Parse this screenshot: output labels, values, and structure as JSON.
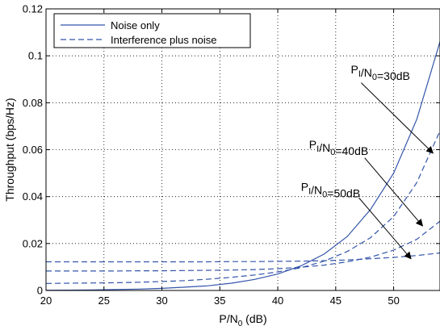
{
  "chart_data": {
    "type": "line",
    "xlabel": "P/N0 (dB)",
    "ylabel": "Throughput (bps/Hz)",
    "xlim": [
      20,
      54
    ],
    "ylim": [
      0,
      0.12
    ],
    "x_ticks": [
      20,
      25,
      30,
      35,
      40,
      45,
      50
    ],
    "y_ticks": [
      0,
      0.02,
      0.04,
      0.06,
      0.08,
      0.1,
      0.12
    ],
    "x_tick_labels": [
      "20",
      "25",
      "30",
      "35",
      "40",
      "45",
      "50"
    ],
    "y_tick_labels": [
      "0",
      "0.02",
      "0.04",
      "0.06",
      "0.08",
      "0.1",
      "0.12"
    ],
    "grid": true,
    "legend_position": "top-left",
    "legend": [
      {
        "label": "Noise only",
        "style": "solid"
      },
      {
        "label": "Interference plus noise",
        "style": "dashed"
      }
    ],
    "line_color": "#3355aa",
    "series": [
      {
        "name": "Noise only",
        "style": "solid",
        "x": [
          20,
          22,
          24,
          26,
          28,
          30,
          32,
          34,
          36,
          38,
          40,
          42,
          44,
          46,
          48,
          50,
          52,
          54
        ],
        "y": [
          0.0001,
          0.00015,
          0.00025,
          0.0004,
          0.0006,
          0.0009,
          0.0014,
          0.002,
          0.0031,
          0.0047,
          0.007,
          0.0105,
          0.0155,
          0.023,
          0.0345,
          0.05,
          0.073,
          0.106
        ]
      },
      {
        "name": "Interference plus noise",
        "style": "dashed",
        "x": [
          20,
          22,
          24,
          26,
          28,
          30,
          32,
          34,
          36,
          38,
          40,
          42,
          44,
          46,
          48,
          50,
          52,
          54
        ],
        "y": [
          0.003,
          0.0031,
          0.0032,
          0.0033,
          0.0035,
          0.0038,
          0.0042,
          0.0048,
          0.0056,
          0.0066,
          0.0079,
          0.0097,
          0.0125,
          0.0166,
          0.0225,
          0.0315,
          0.046,
          0.068
        ]
      },
      {
        "name": "Interference plus noise",
        "style": "dashed",
        "x": [
          20,
          22,
          24,
          26,
          28,
          30,
          32,
          34,
          36,
          38,
          40,
          42,
          44,
          46,
          48,
          50,
          52,
          54
        ],
        "y": [
          0.0083,
          0.0083,
          0.0083,
          0.0083,
          0.0084,
          0.0084,
          0.0085,
          0.0086,
          0.0087,
          0.0089,
          0.0093,
          0.0099,
          0.0108,
          0.0122,
          0.0142,
          0.0172,
          0.0218,
          0.0295
        ]
      },
      {
        "name": "Interference plus noise",
        "style": "dashed",
        "x": [
          20,
          22,
          24,
          26,
          28,
          30,
          32,
          34,
          36,
          38,
          40,
          42,
          44,
          46,
          48,
          50,
          52,
          54
        ],
        "y": [
          0.0122,
          0.0122,
          0.0122,
          0.0122,
          0.0122,
          0.0122,
          0.0122,
          0.0122,
          0.0123,
          0.0123,
          0.0124,
          0.0125,
          0.0127,
          0.013,
          0.0135,
          0.0141,
          0.0149,
          0.016
        ]
      }
    ],
    "annotations": [
      {
        "text": "PI/N0=30dB",
        "main": "P",
        "sub1": "I",
        "mid": "/N",
        "sub2": "0",
        "tail": "=30dB",
        "label_at": [
          46.3,
          0.0925
        ],
        "arrow_from": [
          47.2,
          0.0885
        ],
        "arrow_to": [
          53.4,
          0.0585
        ]
      },
      {
        "text": "PI/N0=40dB",
        "main": "P",
        "sub1": "I",
        "mid": "/N",
        "sub2": "0",
        "tail": "=40dB",
        "label_at": [
          42.7,
          0.0605
        ],
        "arrow_from": [
          47.5,
          0.0565
        ],
        "arrow_to": [
          52.5,
          0.0275
        ]
      },
      {
        "text": "PI/N0=50dB",
        "main": "P",
        "sub1": "I",
        "mid": "/N",
        "sub2": "0",
        "tail": "=50dB",
        "label_at": [
          42.0,
          0.0425
        ],
        "arrow_from": [
          47.0,
          0.0395
        ],
        "arrow_to": [
          51.5,
          0.0135
        ]
      }
    ]
  }
}
